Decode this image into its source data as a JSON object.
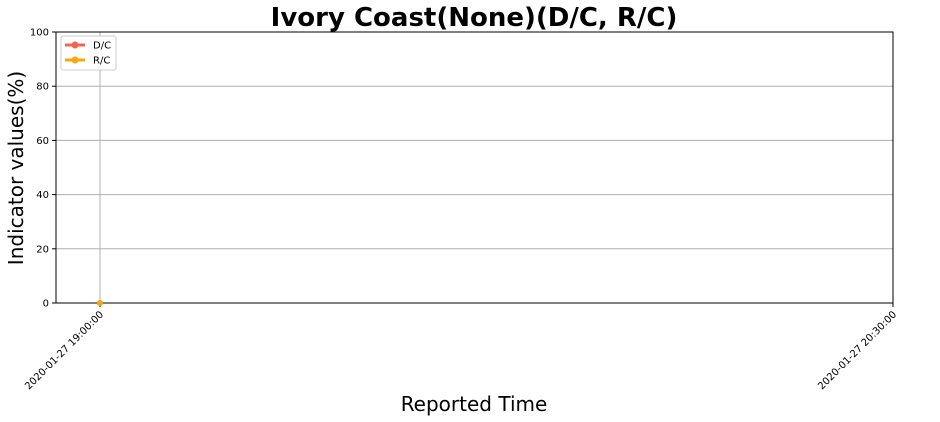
{
  "chart_data": {
    "type": "line",
    "title": "Ivory Coast(None)(D/C, R/C)",
    "xlabel": "Reported Time",
    "ylabel": "Indicator values(%)",
    "ylim": [
      0,
      100
    ],
    "yticks": [
      0,
      20,
      40,
      60,
      80,
      100
    ],
    "x_ticks": [
      "2020-01-27 19:00:00",
      "2020-01-27 20:30:00"
    ],
    "x_tick_index": [
      0,
      1
    ],
    "x": [
      "2020-01-27 19:00:00"
    ],
    "grid": true,
    "legend_position": "top-left",
    "series": [
      {
        "name": "D/C",
        "color": "#f4634f",
        "values": [
          0
        ]
      },
      {
        "name": "R/C",
        "color": "#f5a70c",
        "values": [
          0
        ]
      }
    ]
  }
}
